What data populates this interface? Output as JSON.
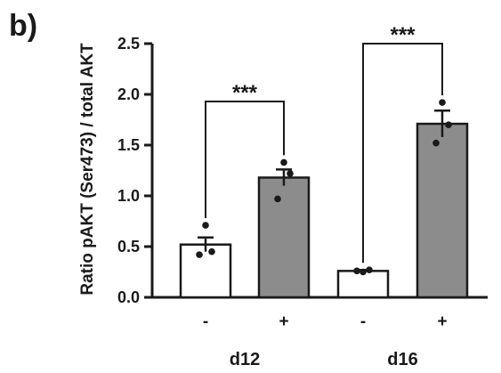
{
  "panel_label": "b)",
  "chart_data": {
    "type": "bar",
    "title": "",
    "xlabel": "",
    "ylabel": "Ratio pAKT (Ser473) / total AKT",
    "ylim": [
      0,
      2.5
    ],
    "yticks": [
      "0.0",
      "0.5",
      "1.0",
      "1.5",
      "2.0",
      "2.5"
    ],
    "ytick_values": [
      0,
      0.5,
      1.0,
      1.5,
      2.0,
      2.5
    ],
    "groups": [
      "d12",
      "d16"
    ],
    "categories": [
      "-",
      "+",
      "-",
      "+"
    ],
    "values": [
      0.52,
      1.18,
      0.26,
      1.71
    ],
    "errors": [
      0.07,
      0.08,
      0.01,
      0.13
    ],
    "points": [
      [
        0.71,
        0.42,
        0.45
      ],
      [
        1.33,
        0.97,
        1.22
      ],
      [
        0.25,
        0.26,
        0.27
      ],
      [
        1.92,
        1.52,
        1.7
      ]
    ],
    "bar_colors": [
      "#ffffff",
      "#8c8c8c",
      "#ffffff",
      "#8c8c8c"
    ],
    "significance": [
      {
        "group": "d12",
        "pair": [
          0,
          1
        ],
        "label": "***"
      },
      {
        "group": "d16",
        "pair": [
          2,
          3
        ],
        "label": "***"
      }
    ],
    "grid": false,
    "legend": "none"
  }
}
